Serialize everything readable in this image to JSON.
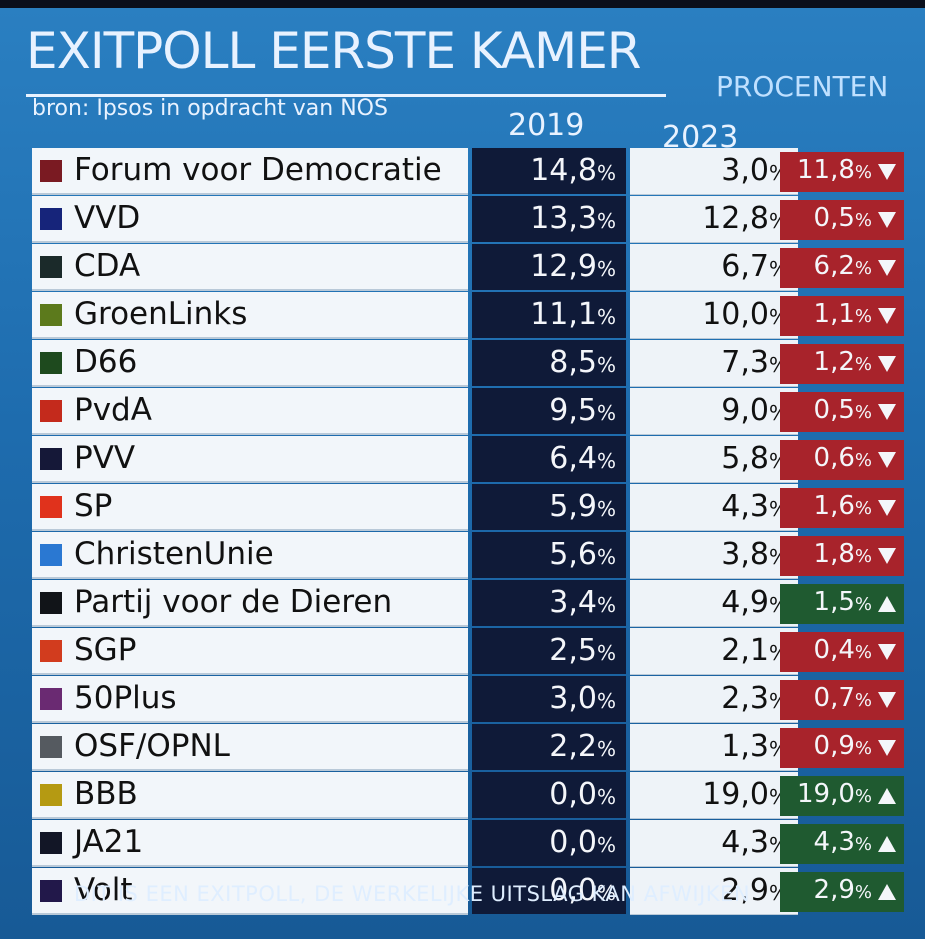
{
  "header": {
    "title": "EXITPOLL EERSTE KAMER",
    "source": "bron: Ipsos in opdracht van NOS",
    "unit": "PROCENTEN",
    "year1": "2019",
    "year2": "2023"
  },
  "colors": {
    "decrease": "#a8232b",
    "increase": "#1f5a30"
  },
  "rows": [
    {
      "party": "Forum voor Democratie",
      "color": "#7a1a22",
      "v2019": "14,8",
      "v2023": "3,0",
      "diff": "11,8",
      "direction": "down"
    },
    {
      "party": "VVD",
      "color": "#16247a",
      "v2019": "13,3",
      "v2023": "12,8",
      "diff": "0,5",
      "direction": "down"
    },
    {
      "party": "CDA",
      "color": "#1b2a2a",
      "v2019": "12,9",
      "v2023": "6,7",
      "diff": "6,2",
      "direction": "down"
    },
    {
      "party": "GroenLinks",
      "color": "#5c7a1c",
      "v2019": "11,1",
      "v2023": "10,0",
      "diff": "1,1",
      "direction": "down"
    },
    {
      "party": "D66",
      "color": "#1e4a1e",
      "v2019": "8,5",
      "v2023": "7,3",
      "diff": "1,2",
      "direction": "down"
    },
    {
      "party": "PvdA",
      "color": "#c42a1c",
      "v2019": "9,5",
      "v2023": "9,0",
      "diff": "0,5",
      "direction": "down"
    },
    {
      "party": "PVV",
      "color": "#151838",
      "v2019": "6,4",
      "v2023": "5,8",
      "diff": "0,6",
      "direction": "down"
    },
    {
      "party": "SP",
      "color": "#e0321c",
      "v2019": "5,9",
      "v2023": "4,3",
      "diff": "1,6",
      "direction": "down"
    },
    {
      "party": "ChristenUnie",
      "color": "#2a78d2",
      "v2019": "5,6",
      "v2023": "3,8",
      "diff": "1,8",
      "direction": "down"
    },
    {
      "party": "Partij voor de Dieren",
      "color": "#111418",
      "v2019": "3,4",
      "v2023": "4,9",
      "diff": "1,5",
      "direction": "up"
    },
    {
      "party": "SGP",
      "color": "#d23c1e",
      "v2019": "2,5",
      "v2023": "2,1",
      "diff": "0,4",
      "direction": "down"
    },
    {
      "party": "50Plus",
      "color": "#6a2a72",
      "v2019": "3,0",
      "v2023": "2,3",
      "diff": "0,7",
      "direction": "down"
    },
    {
      "party": "OSF/OPNL",
      "color": "#555a60",
      "v2019": "2,2",
      "v2023": "1,3",
      "diff": "0,9",
      "direction": "down"
    },
    {
      "party": "BBB",
      "color": "#b59a12",
      "v2019": "0,0",
      "v2023": "19,0",
      "diff": "19,0",
      "direction": "up"
    },
    {
      "party": "JA21",
      "color": "#121626",
      "v2019": "0,0",
      "v2023": "4,3",
      "diff": "4,3",
      "direction": "up"
    },
    {
      "party": "Volt",
      "color": "#22184a",
      "v2019": "0,0",
      "v2023": "2,9",
      "diff": "2,9",
      "direction": "up"
    }
  ],
  "pct_sign": "%",
  "footer": "DIT IS EEN EXITPOLL, DE WERKELIJKE UITSLAG KAN AFWIJKEN"
}
